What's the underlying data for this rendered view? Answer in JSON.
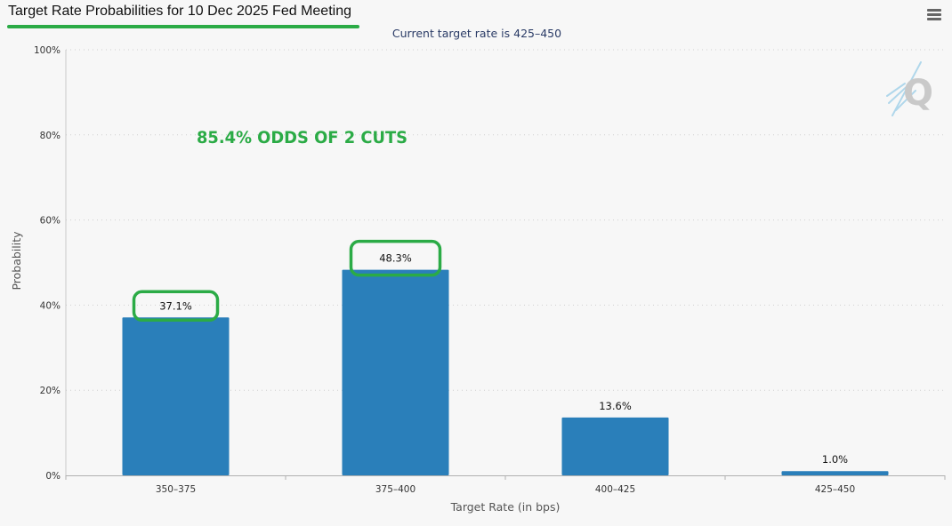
{
  "header": {
    "title": "Target Rate Probabilities for 10 Dec 2025 Fed Meeting",
    "subtitle": "Current target rate is 425–450",
    "menu_icon": "hamburger-menu-icon"
  },
  "annotation": {
    "text": "85.4% ODDS OF 2 CUTS",
    "color": "#2bab46",
    "highlighted_labels": [
      "37.1%",
      "48.3%"
    ]
  },
  "colors": {
    "bar": "#2a7fba",
    "highlight": "#2bab46",
    "title_underline": "#2bab46"
  },
  "chart_data": {
    "type": "bar",
    "categories": [
      "350–375",
      "375–400",
      "400–425",
      "425–450"
    ],
    "values": [
      37.1,
      48.3,
      13.6,
      1.0
    ],
    "data_labels": [
      "37.1%",
      "48.3%",
      "13.6%",
      "1.0%"
    ],
    "y_ticks": [
      "0%",
      "20%",
      "40%",
      "60%",
      "80%",
      "100%"
    ],
    "ylim": [
      0,
      100
    ],
    "xlabel": "Target Rate (in bps)",
    "ylabel": "Probability",
    "grid": true,
    "legend": "none"
  }
}
